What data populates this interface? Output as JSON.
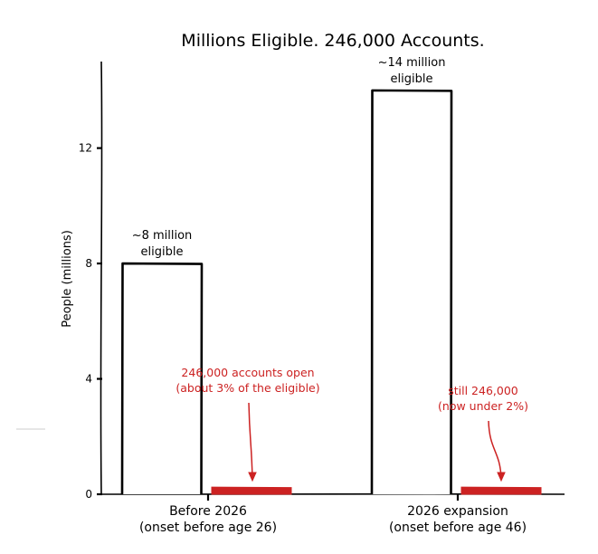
{
  "chart_data": {
    "type": "bar",
    "title": "Millions Eligible. 246,000 Accounts.",
    "xlabel": "",
    "ylabel": "People (millions)",
    "ylim": [
      0,
      15
    ],
    "yticks": [
      0,
      4,
      8,
      12
    ],
    "grid": false,
    "categories": [
      [
        "Before 2026",
        "(onset before age 26)"
      ],
      [
        "2026 expansion",
        "(onset before age 46)"
      ]
    ],
    "series": [
      {
        "name": "",
        "values": [
          8,
          14
        ],
        "color": "#ffffff",
        "edge": "#000000"
      },
      {
        "name": "",
        "values": [
          0.246,
          0.246
        ],
        "color": "#cc2222"
      }
    ],
    "data_labels": [
      [
        "~8 million",
        "eligible"
      ],
      [
        "~14 million",
        "eligible"
      ]
    ],
    "annotations": [
      [
        "246,000 accounts open",
        "(about 3% of the eligible)"
      ],
      [
        "still 246,000",
        "(now under 2%)"
      ]
    ],
    "accent_color": "#cc2222"
  }
}
